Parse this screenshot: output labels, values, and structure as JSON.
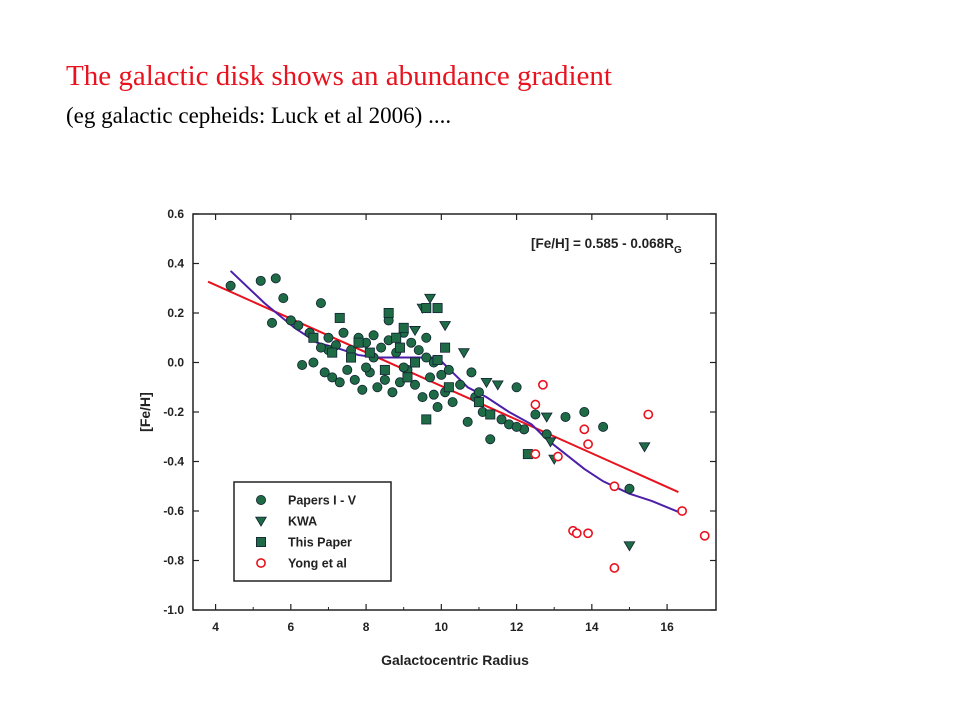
{
  "slide": {
    "title": "The galactic disk shows an abundance gradient",
    "subtitle": "(eg galactic cepheids: Luck et al 2006) ...."
  },
  "colors": {
    "title": "#e8131f",
    "markers": "#1e6b45",
    "yong": "#e8131f",
    "fit_line": "#e8131f",
    "mean_line": "#4b1fa8"
  },
  "chart_data": {
    "type": "scatter",
    "xlabel": "Galactocentric Radius",
    "ylabel": "[Fe/H]",
    "xlim": [
      3.4,
      17.3
    ],
    "ylim": [
      -1.0,
      0.6
    ],
    "xticks": [
      4,
      6,
      8,
      10,
      12,
      14,
      16
    ],
    "yticks": [
      0.6,
      0.4,
      0.2,
      0.0,
      -0.2,
      -0.4,
      -0.6,
      -0.8,
      -1.0
    ],
    "xtick_labels": [
      "4",
      "6",
      "8",
      "10",
      "12",
      "14",
      "16"
    ],
    "ytick_labels": [
      "0.6",
      "0.4",
      "0.2",
      "0.0",
      "-0.2",
      "-0.4",
      "-0.6",
      "-0.8",
      "-1.0"
    ],
    "equation": {
      "main": "[Fe/H] = 0.585 - 0.068R",
      "sub": "G"
    },
    "legend_position": "bottom-left",
    "series": [
      {
        "name": "Papers I - V",
        "marker": "circle",
        "points": [
          [
            4.4,
            0.31
          ],
          [
            5.2,
            0.33
          ],
          [
            5.6,
            0.34
          ],
          [
            5.5,
            0.16
          ],
          [
            5.8,
            0.26
          ],
          [
            6.0,
            0.17
          ],
          [
            6.2,
            0.15
          ],
          [
            6.8,
            0.24
          ],
          [
            7.0,
            0.1
          ],
          [
            7.2,
            0.07
          ],
          [
            7.4,
            0.12
          ],
          [
            7.6,
            0.05
          ],
          [
            7.8,
            0.1
          ],
          [
            8.0,
            0.08
          ],
          [
            8.2,
            0.02
          ],
          [
            8.4,
            0.06
          ],
          [
            8.6,
            0.17
          ],
          [
            8.8,
            0.04
          ],
          [
            9.0,
            0.12
          ],
          [
            9.2,
            0.08
          ],
          [
            9.4,
            0.05
          ],
          [
            9.6,
            0.02
          ],
          [
            9.8,
            0.0
          ],
          [
            10.0,
            -0.05
          ],
          [
            6.3,
            -0.01
          ],
          [
            6.6,
            0.0
          ],
          [
            6.9,
            -0.04
          ],
          [
            7.1,
            -0.06
          ],
          [
            7.3,
            -0.08
          ],
          [
            7.5,
            -0.03
          ],
          [
            7.7,
            -0.07
          ],
          [
            7.9,
            -0.11
          ],
          [
            8.1,
            -0.04
          ],
          [
            8.3,
            -0.1
          ],
          [
            8.5,
            -0.07
          ],
          [
            8.7,
            -0.12
          ],
          [
            8.9,
            -0.08
          ],
          [
            9.1,
            -0.03
          ],
          [
            9.3,
            -0.09
          ],
          [
            9.5,
            -0.14
          ],
          [
            9.7,
            -0.06
          ],
          [
            9.9,
            -0.18
          ],
          [
            10.1,
            -0.12
          ],
          [
            10.3,
            -0.16
          ],
          [
            10.5,
            -0.09
          ],
          [
            10.7,
            -0.24
          ],
          [
            10.9,
            -0.14
          ],
          [
            11.1,
            -0.2
          ],
          [
            11.3,
            -0.31
          ],
          [
            11.6,
            -0.23
          ],
          [
            11.8,
            -0.25
          ],
          [
            12.0,
            -0.1
          ],
          [
            12.2,
            -0.27
          ],
          [
            12.5,
            -0.21
          ],
          [
            12.8,
            -0.29
          ],
          [
            13.3,
            -0.22
          ],
          [
            13.8,
            -0.2
          ],
          [
            14.3,
            -0.26
          ],
          [
            15.0,
            -0.51
          ],
          [
            6.5,
            0.12
          ],
          [
            8.0,
            -0.02
          ],
          [
            9.0,
            -0.02
          ],
          [
            10.2,
            -0.03
          ],
          [
            11.0,
            -0.12
          ],
          [
            7.0,
            0.05
          ],
          [
            8.6,
            0.09
          ],
          [
            9.6,
            0.1
          ],
          [
            10.8,
            -0.04
          ],
          [
            12.0,
            -0.26
          ],
          [
            6.8,
            0.06
          ],
          [
            8.2,
            0.11
          ],
          [
            9.8,
            -0.13
          ]
        ]
      },
      {
        "name": "KWA",
        "marker": "triangle",
        "points": [
          [
            9.7,
            0.26
          ],
          [
            9.5,
            0.22
          ],
          [
            10.1,
            0.15
          ],
          [
            10.6,
            0.04
          ],
          [
            9.3,
            0.13
          ],
          [
            11.2,
            -0.08
          ],
          [
            11.5,
            -0.09
          ],
          [
            12.8,
            -0.22
          ],
          [
            12.9,
            -0.32
          ],
          [
            13.0,
            -0.39
          ],
          [
            15.4,
            -0.34
          ],
          [
            15.0,
            -0.74
          ]
        ]
      },
      {
        "name": "This Paper",
        "marker": "square",
        "points": [
          [
            7.3,
            0.18
          ],
          [
            8.6,
            0.2
          ],
          [
            9.0,
            0.14
          ],
          [
            9.6,
            0.22
          ],
          [
            9.9,
            0.22
          ],
          [
            8.8,
            0.1
          ],
          [
            7.8,
            0.08
          ],
          [
            10.1,
            0.06
          ],
          [
            8.1,
            0.04
          ],
          [
            9.3,
            0.0
          ],
          [
            8.5,
            -0.03
          ],
          [
            7.6,
            0.02
          ],
          [
            9.1,
            -0.06
          ],
          [
            10.2,
            -0.1
          ],
          [
            9.6,
            -0.23
          ],
          [
            11.3,
            -0.21
          ],
          [
            12.3,
            -0.37
          ],
          [
            6.6,
            0.1
          ],
          [
            7.1,
            0.04
          ],
          [
            8.9,
            0.06
          ],
          [
            9.9,
            0.01
          ],
          [
            11.0,
            -0.16
          ]
        ]
      },
      {
        "name": "Yong et al",
        "marker": "open-circle",
        "points": [
          [
            12.5,
            -0.17
          ],
          [
            12.7,
            -0.09
          ],
          [
            13.1,
            -0.38
          ],
          [
            12.5,
            -0.37
          ],
          [
            13.5,
            -0.68
          ],
          [
            13.6,
            -0.69
          ],
          [
            13.9,
            -0.69
          ],
          [
            13.9,
            -0.33
          ],
          [
            14.6,
            -0.5
          ],
          [
            14.6,
            -0.83
          ],
          [
            15.5,
            -0.21
          ],
          [
            13.8,
            -0.27
          ],
          [
            16.4,
            -0.6
          ],
          [
            17.0,
            -0.7
          ]
        ]
      }
    ],
    "fit_line": {
      "x": [
        3.8,
        16.3
      ]
    },
    "mean_line": {
      "x": [
        4.4,
        5.3,
        6.1,
        6.7,
        7.2,
        7.8,
        8.3,
        8.9,
        9.4,
        9.9,
        10.3,
        10.7,
        11.2,
        11.8,
        12.4,
        12.8,
        13.3,
        13.8,
        14.3,
        15.0,
        15.6,
        16.4
      ],
      "y": [
        0.37,
        0.24,
        0.14,
        0.08,
        0.06,
        0.03,
        0.02,
        0.02,
        0.02,
        0.02,
        -0.04,
        -0.1,
        -0.14,
        -0.2,
        -0.25,
        -0.31,
        -0.37,
        -0.43,
        -0.48,
        -0.53,
        -0.56,
        -0.61
      ]
    }
  }
}
